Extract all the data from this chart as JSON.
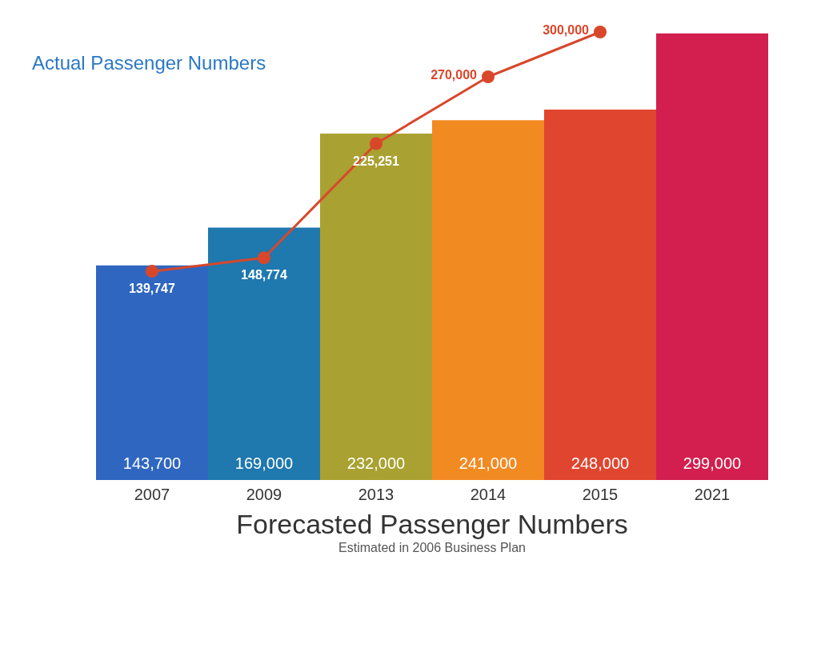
{
  "chart_data": {
    "type": "bar",
    "title": "Forecasted Passenger Numbers",
    "subtitle": "Estimated in 2006 Business Plan",
    "categories": [
      "2007",
      "2009",
      "2013",
      "2014",
      "2015",
      "2021"
    ],
    "values": [
      143700,
      169000,
      232000,
      241000,
      248000,
      299000
    ],
    "value_labels": [
      "143,700",
      "169,000",
      "232,000",
      "241,000",
      "248,000",
      "299,000"
    ],
    "colors": [
      "#2f66c0",
      "#1f78ae",
      "#a9a131",
      "#f28a22",
      "#e0452f",
      "#d21f4f"
    ],
    "series": [
      {
        "name": "Actual Passenger Numbers",
        "type": "line",
        "color": "#d9472b",
        "values": [
          139747,
          148774,
          225251,
          270000,
          300000,
          null
        ],
        "value_labels": [
          "139,747",
          "148,774",
          "225,251",
          "270,000",
          "300,000",
          null
        ]
      }
    ],
    "marker": "circle"
  }
}
